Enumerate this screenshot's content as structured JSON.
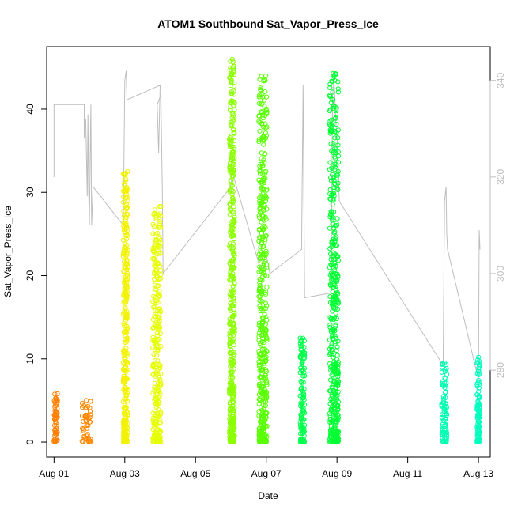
{
  "chart_data": {
    "type": "scatter",
    "title": "ATOM1 Southbound Sat_Vapor_Press_Ice",
    "xlabel": "Date",
    "ylabel": "Sat_Vapor_Press_Ice",
    "xlim": [
      "2016-07-31T19:00",
      "2016-08-13T08:00"
    ],
    "ylim": [
      -1.8,
      47.5
    ],
    "x_ticks": [
      "Aug 01",
      "Aug 03",
      "Aug 05",
      "Aug 07",
      "Aug 09",
      "Aug 11",
      "Aug 13"
    ],
    "y_ticks": [
      0,
      10,
      20,
      30,
      40
    ],
    "y2_ticks": [
      280,
      300,
      320,
      340
    ],
    "y2lim": [
      262,
      347
    ],
    "y2_color": "#bebebe",
    "grid": false,
    "marker": "open-circle",
    "clusters": [
      {
        "start": "2016-08-01T00:00",
        "end": "2016-08-01T02:30",
        "ymax": 5.8,
        "color": "#ff7f00"
      },
      {
        "start": "2016-08-01T19:00",
        "end": "2016-08-02T01:00",
        "ymax": 5.0,
        "color": "#ff8800"
      },
      {
        "start": "2016-08-02T23:00",
        "end": "2016-08-03T02:00",
        "ymax": 32.5,
        "color": "#f2f200"
      },
      {
        "start": "2016-08-03T19:00",
        "end": "2016-08-04T00:30",
        "ymax": 28.3,
        "color": "#e6ff00"
      },
      {
        "start": "2016-08-05T23:00",
        "end": "2016-08-06T02:30",
        "ymax": 46.0,
        "color": "#8cff00"
      },
      {
        "start": "2016-08-06T19:00",
        "end": "2016-08-07T00:30",
        "ymax": 44.0,
        "color": "#59ff00"
      },
      {
        "start": "2016-08-07T23:00",
        "end": "2016-08-08T02:00",
        "ymax": 12.5,
        "color": "#00ff4d"
      },
      {
        "start": "2016-08-08T19:00",
        "end": "2016-08-09T01:00",
        "ymax": 44.3,
        "color": "#00ff33"
      },
      {
        "start": "2016-08-11T23:00",
        "end": "2016-08-12T02:30",
        "ymax": 9.5,
        "color": "#00ffb3"
      },
      {
        "start": "2016-08-12T23:00",
        "end": "2016-08-13T01:00",
        "ymax": 10.2,
        "color": "#00ffbf"
      }
    ],
    "secondary_series": {
      "color": "#bebebe",
      "points": [
        [
          "2016-08-01T00:00",
          320
        ],
        [
          "2016-08-01T00:00",
          335
        ],
        [
          "2016-08-01T20:30",
          335
        ],
        [
          "2016-08-01T20:30",
          328
        ],
        [
          "2016-08-01T21:30",
          332
        ],
        [
          "2016-08-01T22:30",
          316
        ],
        [
          "2016-08-01T23:00",
          333
        ],
        [
          "2016-08-01T23:30",
          317
        ],
        [
          "2016-08-02T00:00",
          310
        ],
        [
          "2016-08-02T01:00",
          335
        ],
        [
          "2016-08-02T01:30",
          310
        ],
        [
          "2016-08-02T02:30",
          318
        ],
        [
          "2016-08-02T23:00",
          310
        ],
        [
          "2016-08-03T00:00",
          340
        ],
        [
          "2016-08-03T01:00",
          342
        ],
        [
          "2016-08-03T01:30",
          336
        ],
        [
          "2016-08-04T00:00",
          339
        ],
        [
          "2016-08-03T23:00",
          325
        ],
        [
          "2016-08-03T22:00",
          335
        ],
        [
          "2016-08-04T00:30",
          337
        ],
        [
          "2016-08-04T01:30",
          317
        ],
        [
          "2016-08-04T02:00",
          300
        ],
        [
          "2016-08-06T00:00",
          318
        ],
        [
          "2016-08-06T01:00",
          321
        ],
        [
          "2016-08-06T20:00",
          301
        ],
        [
          "2016-08-07T00:00",
          304
        ],
        [
          "2016-08-07T02:30",
          300
        ],
        [
          "2016-08-08T00:00",
          305
        ],
        [
          "2016-08-08T01:00",
          339
        ],
        [
          "2016-08-08T02:00",
          295
        ],
        [
          "2016-08-08T20:00",
          296
        ],
        [
          "2016-08-08T21:00",
          337
        ],
        [
          "2016-08-08T22:00",
          340
        ],
        [
          "2016-08-08T23:30",
          330
        ],
        [
          "2016-08-09T00:30",
          326
        ],
        [
          "2016-08-09T01:30",
          315
        ],
        [
          "2016-08-12T00:00",
          281
        ],
        [
          "2016-08-12T01:00",
          315
        ],
        [
          "2016-08-12T02:00",
          318
        ],
        [
          "2016-08-12T02:30",
          308
        ],
        [
          "2016-08-12T03:00",
          305
        ],
        [
          "2016-08-13T00:00",
          278
        ],
        [
          "2016-08-13T00:30",
          309
        ],
        [
          "2016-08-13T01:00",
          305
        ]
      ]
    }
  }
}
